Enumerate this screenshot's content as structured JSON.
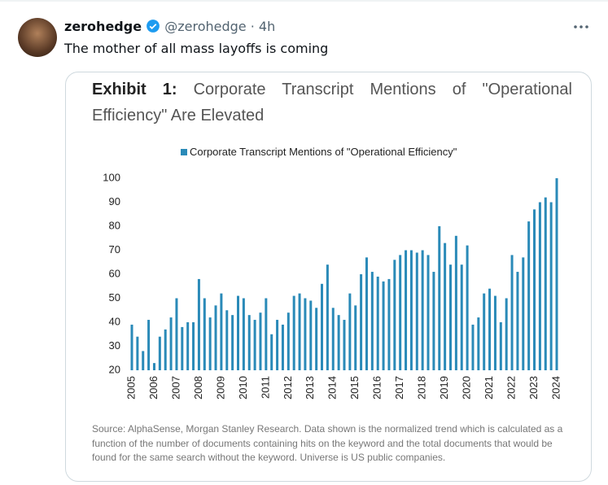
{
  "tweet": {
    "name": "zerohedge",
    "handle": "@zerohedge",
    "separator": "·",
    "time": "4h",
    "text": "The mother of all mass layoffs is coming"
  },
  "chart_data": {
    "type": "bar",
    "exhibit": "Exhibit 1:",
    "title": "Corporate Transcript Mentions of \"Operational Efficiency\" Are Elevated",
    "categories": [
      "2005",
      null,
      null,
      null,
      "2006",
      null,
      null,
      null,
      "2007",
      null,
      null,
      null,
      "2008",
      null,
      null,
      null,
      "2009",
      null,
      null,
      null,
      "2010",
      null,
      null,
      null,
      "2011",
      null,
      null,
      null,
      "2012",
      null,
      null,
      null,
      "2013",
      null,
      null,
      null,
      "2014",
      null,
      null,
      null,
      "2015",
      null,
      null,
      null,
      "2016",
      null,
      null,
      null,
      "2017",
      null,
      null,
      null,
      "2018",
      null,
      null,
      null,
      "2019",
      null,
      null,
      null,
      "2020",
      null,
      null,
      null,
      "2021",
      null,
      null,
      null,
      "2022",
      null,
      null,
      null,
      "2023",
      null,
      null,
      null,
      "2024"
    ],
    "series": [
      {
        "name": "Corporate Transcript Mentions of \"Operational Efficiency\"",
        "color": "#2a8ab8",
        "values": [
          39,
          34,
          28,
          41,
          23,
          34,
          37,
          42,
          50,
          38,
          40,
          40,
          58,
          50,
          42,
          47,
          52,
          45,
          43,
          51,
          50,
          43,
          41,
          44,
          50,
          35,
          41,
          39,
          44,
          51,
          52,
          50,
          49,
          46,
          56,
          64,
          46,
          43,
          41,
          52,
          47,
          60,
          67,
          61,
          59,
          57,
          58,
          66,
          68,
          70,
          70,
          69,
          70,
          68,
          61,
          80,
          73,
          64,
          76,
          64,
          72,
          39,
          42,
          52,
          54,
          51,
          40,
          50,
          68,
          61,
          67,
          82,
          87,
          90,
          92,
          90,
          100
        ]
      }
    ],
    "ylim": [
      20,
      100
    ],
    "yticks": [
      20,
      30,
      40,
      50,
      60,
      70,
      80,
      90,
      100
    ],
    "grid": false,
    "source": "Source: AlphaSense, Morgan Stanley Research. Data shown is the normalized trend which is calculated as a function of the number of documents containing hits on the keyword and the total documents that would be found for the same search without the keyword. Universe is US public companies."
  }
}
